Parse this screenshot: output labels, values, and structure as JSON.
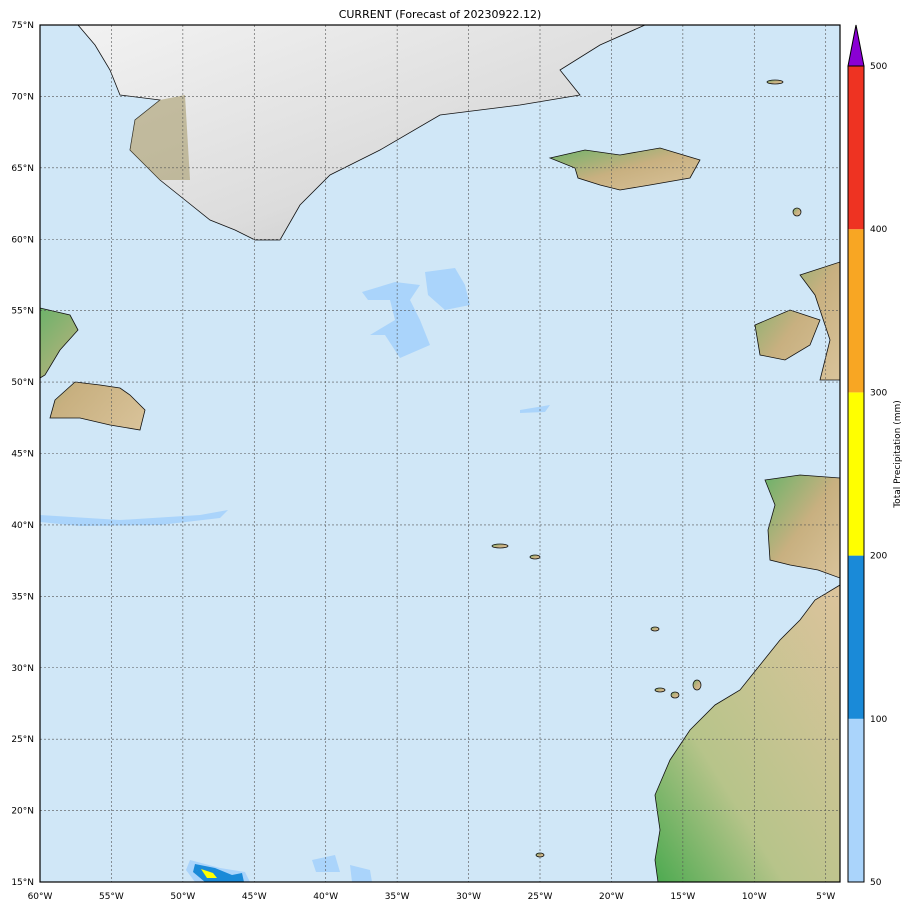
{
  "title": "CURRENT (Forecast of 20230922.12)",
  "map": {
    "lon_range": [
      -60,
      -4
    ],
    "lat_range": [
      15,
      75
    ],
    "grid": true,
    "ocean_color": "#d0e7f7",
    "lon_ticks": [
      "60°W",
      "55°W",
      "50°W",
      "45°W",
      "40°W",
      "35°W",
      "30°W",
      "25°W",
      "20°W",
      "15°W",
      "10°W",
      "5°W"
    ],
    "lon_values": [
      -60,
      -55,
      -50,
      -45,
      -40,
      -35,
      -30,
      -25,
      -20,
      -15,
      -10,
      -5
    ],
    "lat_ticks": [
      "15°N",
      "20°N",
      "25°N",
      "30°N",
      "35°N",
      "40°N",
      "45°N",
      "50°N",
      "55°N",
      "60°N",
      "65°N",
      "70°N",
      "75°N"
    ],
    "lat_values": [
      15,
      20,
      25,
      30,
      35,
      40,
      45,
      50,
      55,
      60,
      65,
      70,
      75
    ]
  },
  "colorbar": {
    "label": "Total Precipitation (mm)",
    "levels": [
      "50",
      "100",
      "200",
      "300",
      "400",
      "500"
    ],
    "colors": [
      "#aad4fb",
      "#1a8ad8",
      "#ffff00",
      "#f8a623",
      "#ee3322"
    ],
    "extend_color": "#8a00d4"
  }
}
